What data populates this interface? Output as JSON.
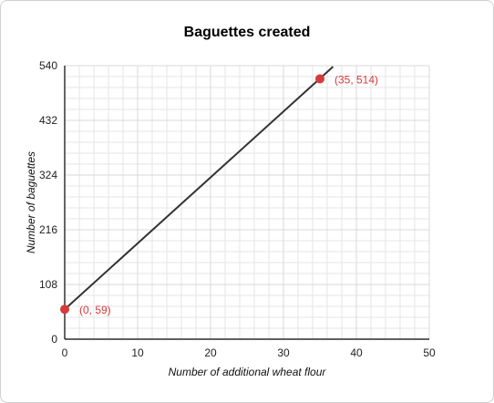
{
  "chart_data": {
    "type": "line",
    "title": "Baguettes created",
    "xlabel": "Number of additional wheat flour",
    "ylabel": "Number of baguettes",
    "xlim": [
      0,
      50
    ],
    "ylim": [
      0,
      540
    ],
    "xticks": [
      0,
      10,
      20,
      30,
      40,
      50
    ],
    "yticks": [
      0,
      108,
      216,
      324,
      432,
      540
    ],
    "grid": true,
    "series": [
      {
        "x": [
          0,
          36.8
        ],
        "y": [
          59,
          538
        ]
      }
    ],
    "points": [
      {
        "x": 0,
        "y": 59,
        "label": "(0, 59)"
      },
      {
        "x": 35,
        "y": 514,
        "label": "(35, 514)"
      }
    ],
    "colors": {
      "line": "#333333",
      "points": "#d63a3a",
      "grid": "#e6e6e6"
    }
  }
}
